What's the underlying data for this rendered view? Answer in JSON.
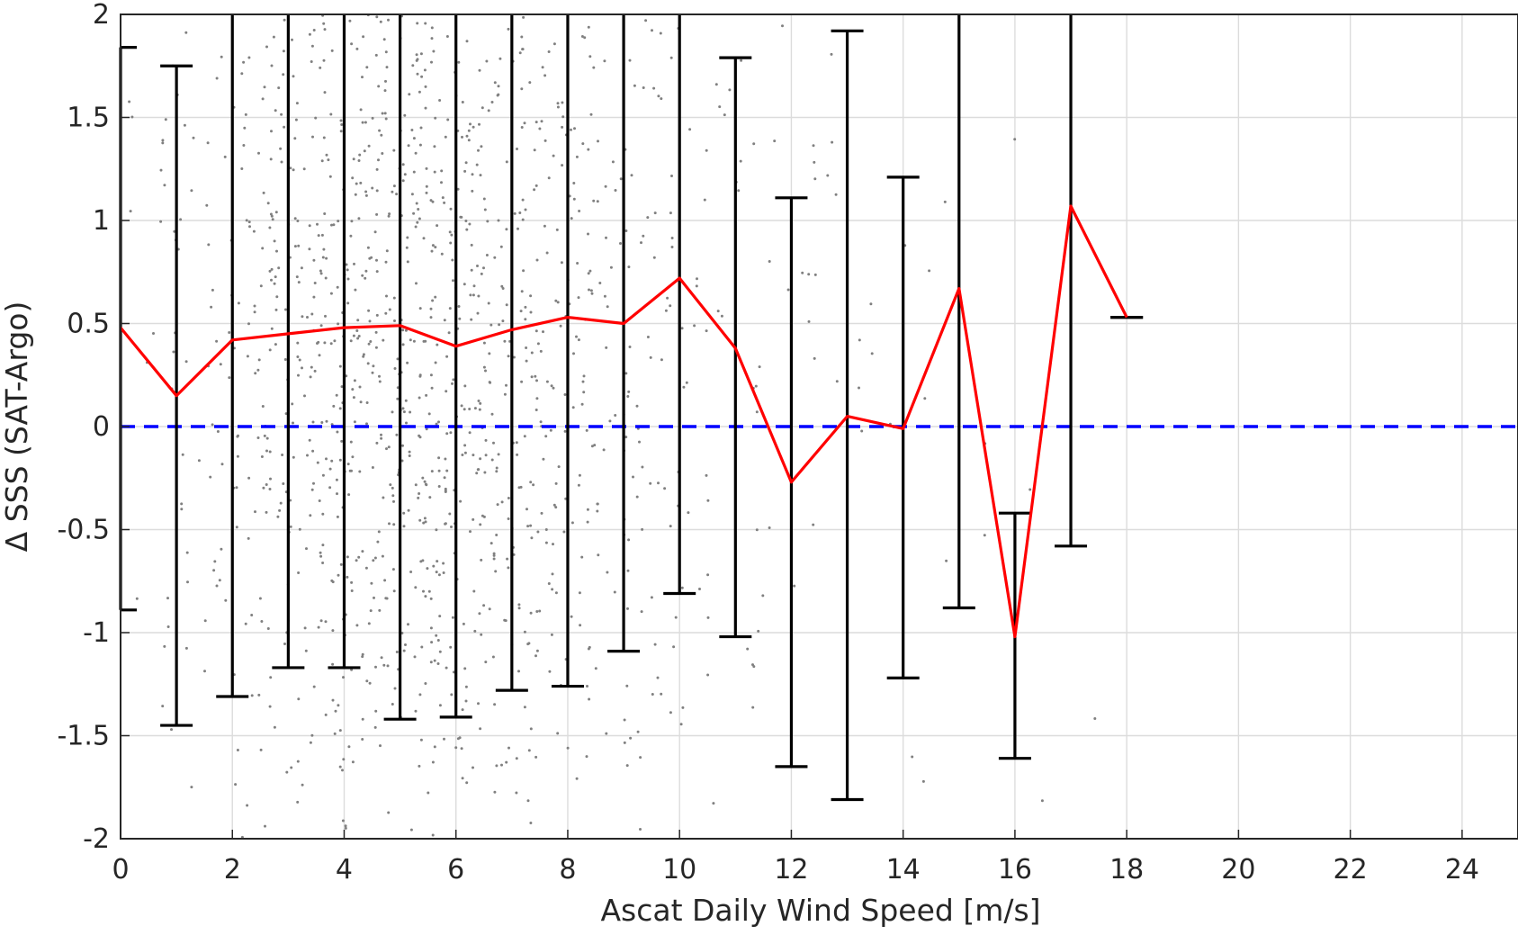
{
  "chart_data": {
    "type": "line",
    "title": "",
    "xlabel": "Ascat Daily Wind Speed [m/s]",
    "ylabel": "Δ SSS (SAT-Argo)",
    "xlim": [
      0,
      25
    ],
    "ylim": [
      -2,
      2
    ],
    "xticks": [
      0,
      2,
      4,
      6,
      8,
      10,
      12,
      14,
      16,
      18,
      20,
      22,
      24
    ],
    "xtick_labels": [
      "0",
      "2",
      "4",
      "6",
      "8",
      "10",
      "12",
      "14",
      "16",
      "18",
      "20",
      "22",
      "24"
    ],
    "yticks": [
      2,
      1.5,
      1,
      0.5,
      0,
      -0.5,
      -1,
      -1.5,
      -2
    ],
    "ytick_labels": [
      "2",
      "1.5",
      "1",
      "0.5",
      "0",
      "-0.5",
      "-1",
      "-1.5",
      "-2"
    ],
    "grid": true,
    "legend": "none",
    "series": [
      {
        "kind": "mean-line",
        "color": "#ff0000",
        "x": [
          0,
          1,
          2,
          3,
          4,
          5,
          6,
          7,
          8,
          9,
          10,
          11,
          12,
          13,
          14,
          15,
          16,
          17,
          18
        ],
        "y": [
          0.48,
          0.15,
          0.42,
          0.45,
          0.48,
          0.49,
          0.39,
          0.47,
          0.53,
          0.5,
          0.72,
          0.38,
          -0.27,
          0.05,
          -0.01,
          0.67,
          -1.02,
          1.07,
          0.53
        ]
      },
      {
        "kind": "error-bars",
        "color": "#000000",
        "x": [
          0,
          1,
          2,
          3,
          4,
          5,
          6,
          7,
          8,
          9,
          10,
          11,
          12,
          13,
          14,
          15,
          16,
          17,
          18
        ],
        "lower": [
          -0.89,
          -1.45,
          -1.31,
          -1.17,
          -1.17,
          -1.42,
          -1.41,
          -1.28,
          -1.26,
          -1.09,
          -0.81,
          -1.02,
          -1.65,
          -1.81,
          -1.22,
          -0.88,
          -1.61,
          -0.58,
          0.53
        ],
        "upper": [
          1.84,
          1.75,
          2.2,
          2.2,
          2.2,
          2.2,
          2.2,
          2.2,
          2.2,
          2.2,
          2.2,
          1.79,
          1.11,
          1.92,
          1.21,
          2.2,
          -0.42,
          2.2,
          0.53
        ]
      },
      {
        "kind": "reference-line",
        "color": "#0000ff",
        "y": 0
      },
      {
        "kind": "scatter",
        "color": "#808080",
        "density_by_speed": [
          [
            0,
            10
          ],
          [
            1,
            40
          ],
          [
            2,
            90
          ],
          [
            3,
            160
          ],
          [
            4,
            220
          ],
          [
            5,
            240
          ],
          [
            6,
            220
          ],
          [
            7,
            170
          ],
          [
            8,
            120
          ],
          [
            9,
            80
          ],
          [
            10,
            50
          ],
          [
            11,
            30
          ],
          [
            12,
            18
          ],
          [
            13,
            12
          ],
          [
            14,
            8
          ],
          [
            15,
            5
          ],
          [
            16,
            4
          ],
          [
            17,
            2
          ]
        ]
      }
    ]
  }
}
